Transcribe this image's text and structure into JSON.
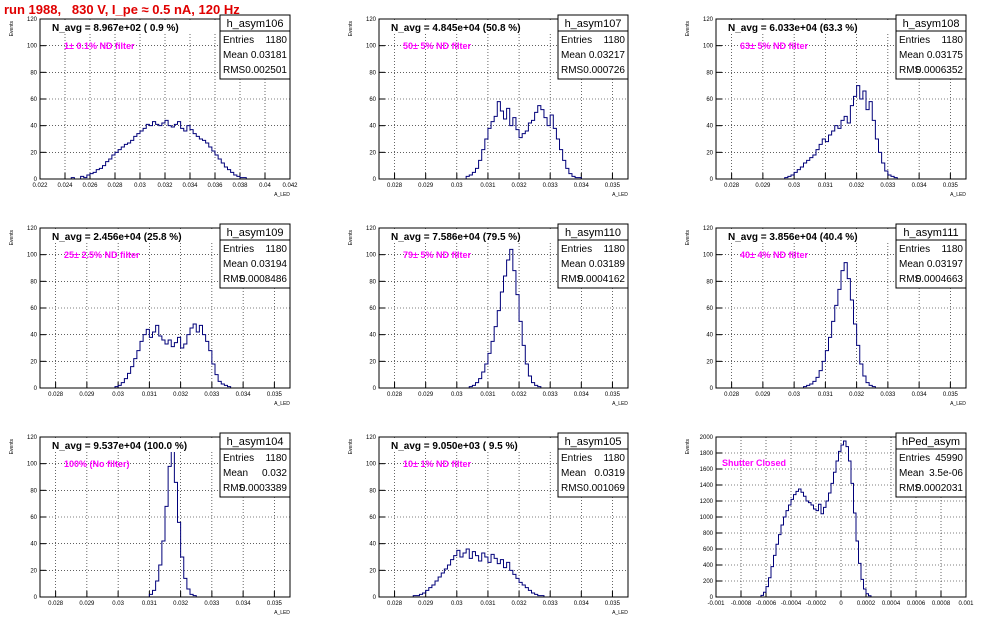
{
  "page": {
    "title": "run 1988,   830 V, I_pe ≈ 0.5 nA, 120 Hz"
  },
  "stats_labels": {
    "entries": "Entries",
    "mean": "Mean",
    "rms": "RMS"
  },
  "colors": {
    "hist": "#00007a",
    "filter_text": "#ff00ff",
    "title_red": "#e00000",
    "frame": "#000000",
    "grid": "#000000"
  },
  "chart_data": [
    {
      "type": "bar",
      "name": "h_asym106",
      "entries": "1180",
      "mean": "0.03181",
      "rms": "0.002501",
      "navg": "N_avg = 8.967e+02 ( 0.9 %)",
      "filter": "1± 0.1% ND filter",
      "xlabel": "A_LED",
      "ylabel": "Events",
      "xlim": [
        0.022,
        0.042
      ],
      "ylim": [
        0,
        120
      ],
      "xticks": [
        "0.022",
        "0.024",
        "0.026",
        "0.028",
        "0.03",
        "0.032",
        "0.034",
        "0.036",
        "0.038",
        "0.04",
        "0.042"
      ],
      "yticks": [
        "0",
        "20",
        "40",
        "60",
        "80",
        "100",
        "120"
      ],
      "bin_start": 0.0245,
      "bin_width": 0.00025,
      "values": [
        1,
        0,
        0,
        2,
        1,
        3,
        4,
        5,
        7,
        8,
        10,
        13,
        15,
        18,
        20,
        22,
        24,
        26,
        27,
        29,
        32,
        34,
        36,
        38,
        41,
        40,
        43,
        41,
        40,
        42,
        44,
        40,
        39,
        41,
        43,
        38,
        36,
        40,
        37,
        34,
        32,
        30,
        29,
        27,
        24,
        21,
        18,
        15,
        12,
        9,
        7,
        5,
        3,
        2,
        1,
        1
      ]
    },
    {
      "type": "bar",
      "name": "h_asym107",
      "entries": "1180",
      "mean": "0.03217",
      "rms": "0.000726",
      "navg": "N_avg = 4.845e+04 (50.8 %)",
      "filter": "50± 5% ND filter",
      "xlabel": "A_LED",
      "ylabel": "Events",
      "xlim": [
        0.0275,
        0.0355
      ],
      "ylim": [
        0,
        120
      ],
      "xticks": [
        "0.028",
        "0.029",
        "0.03",
        "0.031",
        "0.032",
        "0.033",
        "0.034",
        "0.035"
      ],
      "yticks": [
        "0",
        "20",
        "40",
        "60",
        "80",
        "100",
        "120"
      ],
      "bin_start": 0.0303,
      "bin_width": 0.0001,
      "values": [
        2,
        3,
        5,
        8,
        14,
        22,
        30,
        38,
        43,
        47,
        58,
        51,
        45,
        53,
        40,
        46,
        37,
        31,
        34,
        36,
        42,
        44,
        50,
        55,
        52,
        46,
        40,
        48,
        38,
        30,
        22,
        14,
        8,
        4,
        2,
        1,
        1
      ]
    },
    {
      "type": "bar",
      "name": "h_asym108",
      "entries": "1180",
      "mean": "0.03175",
      "rms": "0.0006352",
      "navg": "N_avg = 6.033e+04 (63.3 %)",
      "filter": "63± 5% ND filter",
      "xlabel": "A_LED",
      "ylabel": "Events",
      "xlim": [
        0.0275,
        0.0355
      ],
      "ylim": [
        0,
        120
      ],
      "xticks": [
        "0.028",
        "0.029",
        "0.03",
        "0.031",
        "0.032",
        "0.033",
        "0.034",
        "0.035"
      ],
      "yticks": [
        "0",
        "20",
        "40",
        "60",
        "80",
        "100",
        "120"
      ],
      "bin_start": 0.0297,
      "bin_width": 0.0001,
      "values": [
        1,
        2,
        3,
        5,
        7,
        9,
        12,
        14,
        16,
        18,
        22,
        26,
        30,
        28,
        33,
        36,
        40,
        38,
        44,
        47,
        42,
        55,
        62,
        70,
        60,
        66,
        52,
        58,
        44,
        30,
        20,
        12,
        6,
        3,
        2,
        1
      ]
    },
    {
      "type": "bar",
      "name": "h_asym109",
      "entries": "1180",
      "mean": "0.03194",
      "rms": "0.0008486",
      "navg": "N_avg = 2.456e+04 (25.8 %)",
      "filter": "25± 2.5% ND filter",
      "xlabel": "A_LED",
      "ylabel": "Events",
      "xlim": [
        0.0275,
        0.0355
      ],
      "ylim": [
        0,
        120
      ],
      "xticks": [
        "0.028",
        "0.029",
        "0.03",
        "0.031",
        "0.032",
        "0.033",
        "0.034",
        "0.035"
      ],
      "yticks": [
        "0",
        "20",
        "40",
        "60",
        "80",
        "100",
        "120"
      ],
      "bin_start": 0.0299,
      "bin_width": 0.0001,
      "values": [
        1,
        2,
        4,
        7,
        11,
        16,
        22,
        28,
        35,
        40,
        44,
        38,
        42,
        47,
        39,
        36,
        33,
        36,
        31,
        34,
        38,
        30,
        33,
        40,
        45,
        48,
        42,
        47,
        40,
        35,
        28,
        18,
        10,
        5,
        3,
        2,
        1
      ]
    },
    {
      "type": "bar",
      "name": "h_asym110",
      "entries": "1180",
      "mean": "0.03189",
      "rms": "0.0004162",
      "navg": "N_avg = 7.586e+04 (79.5 %)",
      "filter": "79± 5% ND filter",
      "xlabel": "A_LED",
      "ylabel": "Events",
      "xlim": [
        0.0275,
        0.0355
      ],
      "ylim": [
        0,
        120
      ],
      "xticks": [
        "0.028",
        "0.029",
        "0.03",
        "0.031",
        "0.032",
        "0.033",
        "0.034",
        "0.035"
      ],
      "yticks": [
        "0",
        "20",
        "40",
        "60",
        "80",
        "100",
        "120"
      ],
      "bin_start": 0.0304,
      "bin_width": 0.0001,
      "values": [
        1,
        2,
        4,
        7,
        12,
        18,
        26,
        35,
        46,
        58,
        72,
        84,
        96,
        104,
        88,
        70,
        50,
        32,
        18,
        9,
        4,
        2,
        1
      ]
    },
    {
      "type": "bar",
      "name": "h_asym111",
      "entries": "1180",
      "mean": "0.03197",
      "rms": "0.0004663",
      "navg": "N_avg = 3.856e+04 (40.4 %)",
      "filter": "40± 4% ND filter",
      "xlabel": "A_LED",
      "ylabel": "Events",
      "xlim": [
        0.0275,
        0.0355
      ],
      "ylim": [
        0,
        120
      ],
      "xticks": [
        "0.028",
        "0.029",
        "0.03",
        "0.031",
        "0.032",
        "0.033",
        "0.034",
        "0.035"
      ],
      "yticks": [
        "0",
        "20",
        "40",
        "60",
        "80",
        "100",
        "120"
      ],
      "bin_start": 0.0303,
      "bin_width": 0.0001,
      "values": [
        1,
        2,
        3,
        5,
        8,
        13,
        20,
        28,
        38,
        50,
        62,
        74,
        88,
        94,
        82,
        66,
        48,
        32,
        18,
        9,
        4,
        2,
        1
      ]
    },
    {
      "type": "bar",
      "name": "h_asym104",
      "entries": "1180",
      "mean": "0.032",
      "rms": "0.0003389",
      "navg": "N_avg = 9.537e+04 (100.0 %)",
      "filter": "100% (No filter)",
      "xlabel": "A_LED",
      "ylabel": "Events",
      "xlim": [
        0.0275,
        0.0355
      ],
      "ylim": [
        0,
        120
      ],
      "xticks": [
        "0.028",
        "0.029",
        "0.03",
        "0.031",
        "0.032",
        "0.033",
        "0.034",
        "0.035"
      ],
      "yticks": [
        "0",
        "20",
        "40",
        "60",
        "80",
        "100",
        "120"
      ],
      "bin_start": 0.031,
      "bin_width": 0.0001,
      "values": [
        2,
        5,
        12,
        24,
        42,
        68,
        98,
        110,
        86,
        56,
        30,
        14,
        6,
        2,
        1
      ]
    },
    {
      "type": "bar",
      "name": "h_asym105",
      "entries": "1180",
      "mean": "0.0319",
      "rms": "0.001069",
      "navg": "N_avg = 9.050e+03 ( 9.5 %)",
      "filter": "10± 1% ND filter",
      "xlabel": "A_LED",
      "ylabel": "Events",
      "xlim": [
        0.0275,
        0.0355
      ],
      "ylim": [
        0,
        120
      ],
      "xticks": [
        "0.028",
        "0.029",
        "0.03",
        "0.031",
        "0.032",
        "0.033",
        "0.034",
        "0.035"
      ],
      "yticks": [
        "0",
        "20",
        "40",
        "60",
        "80",
        "100",
        "120"
      ],
      "bin_start": 0.0286,
      "bin_width": 0.0001,
      "values": [
        1,
        1,
        2,
        3,
        5,
        7,
        9,
        12,
        15,
        18,
        21,
        24,
        28,
        31,
        35,
        30,
        33,
        36,
        29,
        34,
        31,
        27,
        33,
        30,
        26,
        32,
        29,
        25,
        28,
        22,
        26,
        20,
        17,
        14,
        11,
        9,
        7,
        5,
        3,
        2,
        1,
        1
      ]
    },
    {
      "type": "bar",
      "name": "hPed_asym",
      "entries": "45990",
      "mean": "3.5e-06",
      "rms": "0.0002031",
      "navg": "",
      "filter": "Shutter Closed",
      "xlabel": "",
      "ylabel": "Events",
      "xlim": [
        -0.001,
        0.001
      ],
      "ylim": [
        0,
        2000
      ],
      "xticks": [
        "-0.001",
        "-0.0008",
        "-0.0006",
        "-0.0004",
        "-0.0002",
        "0",
        "0.0002",
        "0.0004",
        "0.0006",
        "0.0008",
        "0.001"
      ],
      "yticks": [
        "0",
        "200",
        "400",
        "600",
        "800",
        "1000",
        "1200",
        "1400",
        "1600",
        "1800",
        "2000"
      ],
      "bin_start": -0.00064,
      "bin_width": 2e-05,
      "values": [
        20,
        60,
        130,
        240,
        380,
        520,
        660,
        780,
        900,
        1000,
        1080,
        1150,
        1220,
        1280,
        1320,
        1350,
        1310,
        1260,
        1200,
        1180,
        1150,
        1100,
        1080,
        1160,
        1040,
        1120,
        1200,
        1300,
        1420,
        1560,
        1700,
        1820,
        1900,
        1950,
        1880,
        1700,
        1420,
        1050,
        700,
        420,
        220,
        100,
        40,
        15
      ]
    }
  ]
}
